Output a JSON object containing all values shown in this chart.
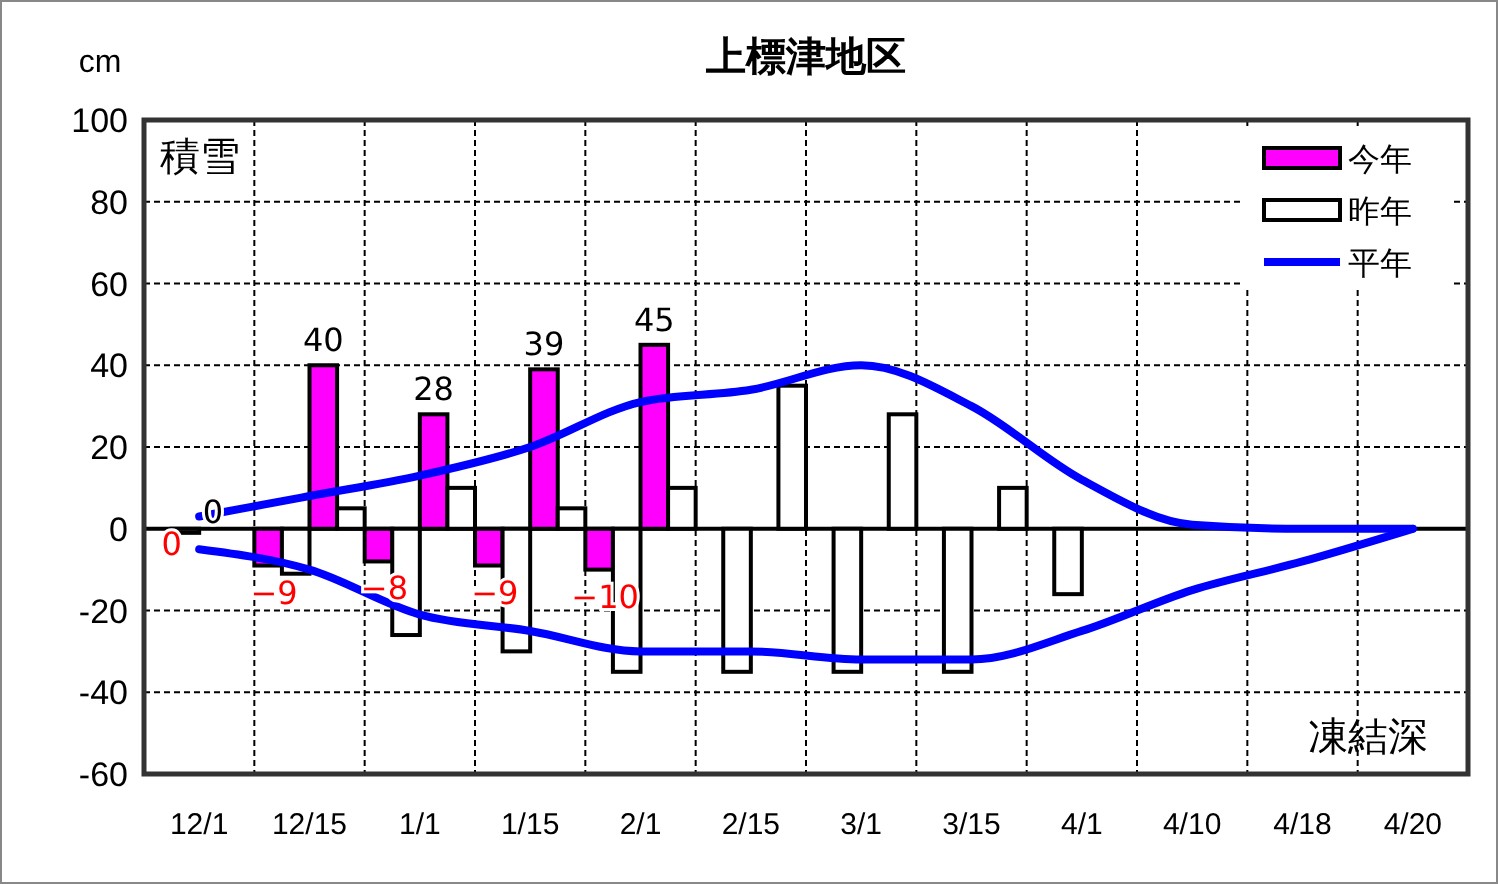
{
  "chart_data": {
    "type": "bar",
    "title": "上標津地区",
    "ylabel": "cm",
    "annotations": [
      "積雪",
      "凍結深"
    ],
    "categories": [
      "12/1",
      "12/15",
      "1/1",
      "1/15",
      "2/1",
      "2/15",
      "3/1",
      "3/15",
      "4/1",
      "4/10",
      "4/18",
      "4/20"
    ],
    "series": [
      {
        "name": "今年",
        "color": "#ff00ff",
        "values": [
          0,
          -9,
          -8,
          -9,
          -10,
          null,
          null,
          null,
          null,
          null,
          null,
          null
        ],
        "value_labels": [
          "0",
          "−9",
          "−8",
          "−9",
          "−10",
          null,
          null,
          null,
          null,
          null,
          null,
          null
        ]
      },
      {
        "name": "昨年",
        "color": "#ffffff",
        "values": [
          -1,
          -11,
          -26,
          -30,
          -35,
          -35,
          -35,
          -35,
          -16,
          null,
          null,
          null
        ]
      },
      {
        "color": "#ff00ff",
        "values": [
          0,
          40,
          28,
          39,
          45,
          null,
          null,
          null,
          null,
          null,
          null,
          null
        ],
        "value_labels": [
          "0",
          "40",
          "28",
          "39",
          "45",
          null,
          null,
          null,
          null,
          null,
          null,
          null
        ]
      },
      {
        "color": "#ffffff",
        "values": [
          null,
          5,
          10,
          5,
          10,
          35,
          28,
          10,
          null,
          null,
          null,
          null
        ]
      },
      {
        "name": "平年",
        "type": "line",
        "color": "#0000ff",
        "values": [
          3,
          8,
          13,
          20,
          31,
          34,
          40,
          30,
          12,
          1,
          0,
          0
        ]
      },
      {
        "type": "line",
        "color": "#0000ff",
        "values": [
          -5,
          -10,
          -21,
          -25,
          -30,
          -30,
          -32,
          -32,
          -25,
          -15,
          -8,
          0
        ]
      }
    ],
    "ylim": [
      -60,
      100
    ],
    "yticks": [
      -60,
      -40,
      -20,
      0,
      20,
      40,
      60,
      80,
      100
    ],
    "grid": true,
    "legend": "top right"
  }
}
